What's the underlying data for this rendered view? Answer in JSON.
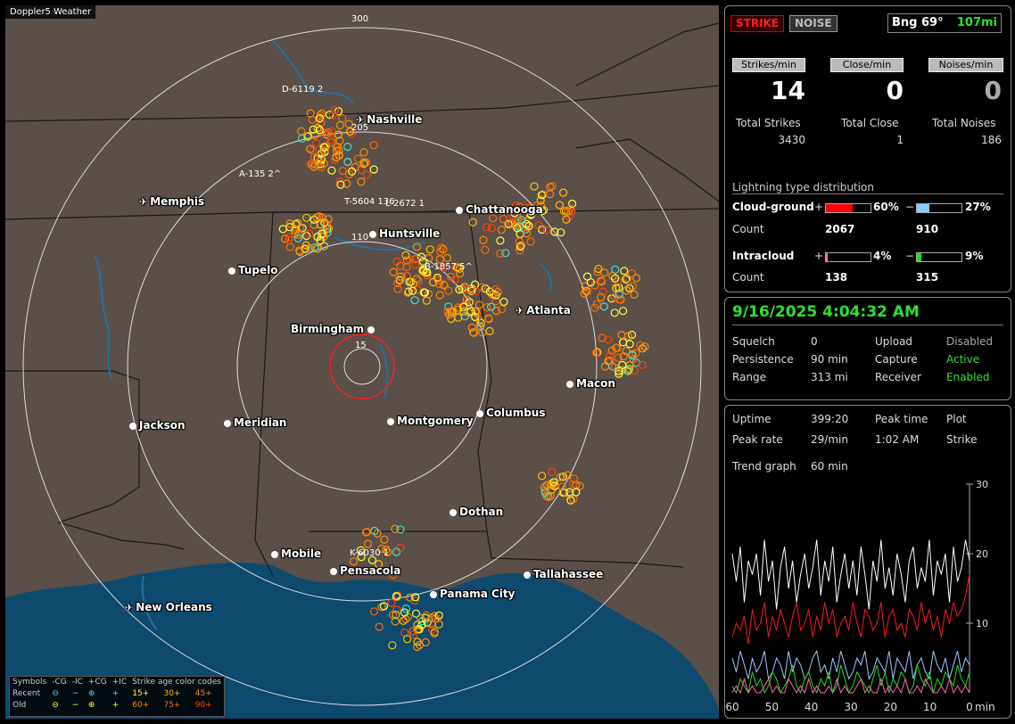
{
  "app_title": "Doppler5 Weather",
  "map": {
    "range_rings": [
      "300",
      "205",
      "110",
      "15"
    ],
    "cities": [
      {
        "name": "Nashville",
        "kind": "airport"
      },
      {
        "name": "Memphis",
        "kind": "airport"
      },
      {
        "name": "Chattanooga",
        "kind": "city"
      },
      {
        "name": "Huntsville",
        "kind": "city"
      },
      {
        "name": "Tupelo",
        "kind": "city"
      },
      {
        "name": "Atlanta",
        "kind": "airport"
      },
      {
        "name": "Birmingham",
        "kind": "city"
      },
      {
        "name": "Macon",
        "kind": "city"
      },
      {
        "name": "Jackson",
        "kind": "city"
      },
      {
        "name": "Meridian",
        "kind": "city"
      },
      {
        "name": "Montgomery",
        "kind": "city"
      },
      {
        "name": "Columbus",
        "kind": "city"
      },
      {
        "name": "Dothan",
        "kind": "city"
      },
      {
        "name": "Mobile",
        "kind": "city"
      },
      {
        "name": "Pensacola",
        "kind": "city"
      },
      {
        "name": "Panama City",
        "kind": "city"
      },
      {
        "name": "Tallahassee",
        "kind": "city"
      },
      {
        "name": "New Orleans",
        "kind": "airport"
      }
    ],
    "storm_labels": [
      "D-6119 2",
      "A-135 2^",
      "T-5604 136",
      "L-2672 1",
      "B-1857 5^",
      "K-6030 1"
    ]
  },
  "legend": {
    "row_header": "Symbols",
    "columns": [
      "-CG",
      "-IC",
      "+CG",
      "+IC"
    ],
    "age_title": "Strike age color codes",
    "recent_label": "Recent",
    "old_label": "Old",
    "recent_symbols": [
      "⊖",
      "−",
      "⊕",
      "+"
    ],
    "old_symbols": [
      "⊖",
      "−",
      "⊕",
      "+"
    ],
    "recent_ages": [
      "15+",
      "30+",
      "45+"
    ],
    "old_ages": [
      "60+",
      "75+",
      "90+"
    ],
    "age_colors": [
      "#ffff40",
      "#ffc000",
      "#ff8c00",
      "#ff8c00",
      "#ff6a00",
      "#ff4500"
    ]
  },
  "status": {
    "strike_tab": "STRIKE",
    "noise_tab": "NOISE",
    "bearing": "Bng 69°",
    "distance": "107mi",
    "strikes_rate_label": "Strikes/min",
    "close_rate_label": "Close/min",
    "noise_rate_label": "Noises/min",
    "strikes_rate": "14",
    "close_rate": "0",
    "noise_rate": "0",
    "total_strikes_label": "Total Strikes",
    "total_close_label": "Total Close",
    "total_noises_label": "Total Noises",
    "total_strikes": "3430",
    "total_close": "1",
    "total_noises": "186"
  },
  "distribution": {
    "title": "Lightning type distribution",
    "cg_label": "Cloud-ground",
    "ic_label": "Intracloud",
    "count_label": "Count",
    "plus": "+",
    "minus": "−",
    "cg_pos_pct": "60%",
    "cg_neg_pct": "27%",
    "ic_pos_pct": "4%",
    "ic_neg_pct": "9%",
    "cg_pos_fraction": 0.6,
    "cg_neg_fraction": 0.27,
    "ic_pos_fraction": 0.04,
    "ic_neg_fraction": 0.09,
    "cg_pos_count": "2067",
    "cg_neg_count": "910",
    "ic_pos_count": "138",
    "ic_neg_count": "315",
    "colors": {
      "cg_pos": "#ff0000",
      "cg_neg": "#88ccff",
      "ic_pos": "#ff66aa",
      "ic_neg": "#22dd22"
    }
  },
  "settings": {
    "datetime": "9/16/2025 4:04:32 AM",
    "squelch_label": "Squelch",
    "squelch": "0",
    "persistence_label": "Persistence",
    "persistence": "90 min",
    "range_label": "Range",
    "range": "313 mi",
    "upload_label": "Upload",
    "upload": "Disabled",
    "capture_label": "Capture",
    "capture": "Active",
    "receiver_label": "Receiver",
    "receiver": "Enabled"
  },
  "stats": {
    "uptime_label": "Uptime",
    "uptime": "399:20",
    "peak_time_label": "Peak time",
    "peak_time": "1:02 AM",
    "plot_label": "Plot",
    "plot": "Strike",
    "peak_rate_label": "Peak rate",
    "peak_rate": "29/min",
    "trend_label": "Trend graph",
    "trend": "60 min"
  },
  "chart_data": {
    "type": "line",
    "x_ticks": [
      "60",
      "50",
      "40",
      "30",
      "20",
      "10",
      "0"
    ],
    "x_unit": "min",
    "y_ticks": [
      "30",
      "20",
      "10"
    ],
    "xlim": [
      60,
      0
    ],
    "ylim": [
      0,
      30
    ],
    "series": [
      {
        "color": "#ffffff",
        "values": [
          20,
          16,
          21,
          13,
          19,
          17,
          20,
          14,
          22,
          16,
          19,
          12,
          18,
          21,
          15,
          19,
          13,
          17,
          20,
          15,
          18,
          22,
          14,
          19,
          16,
          21,
          13,
          17,
          20,
          15,
          19,
          14,
          21,
          17,
          12,
          19,
          16,
          22,
          15,
          18,
          14,
          20,
          17,
          13,
          19,
          21,
          15,
          18,
          16,
          22,
          14,
          19,
          17,
          20,
          13,
          21,
          16,
          18,
          22,
          19
        ]
      },
      {
        "color": "#ff1a1a",
        "values": [
          8,
          10,
          9,
          11,
          7,
          12,
          9,
          10,
          13,
          8,
          11,
          9,
          12,
          10,
          8,
          11,
          13,
          9,
          10,
          12,
          8,
          11,
          9,
          13,
          10,
          12,
          8,
          10,
          11,
          9,
          13,
          10,
          8,
          12,
          11,
          9,
          10,
          13,
          8,
          11,
          12,
          9,
          10,
          8,
          12,
          11,
          9,
          13,
          10,
          12,
          9,
          11,
          8,
          12,
          10,
          13,
          11,
          12,
          14,
          17
        ]
      },
      {
        "color": "#99ccff",
        "values": [
          5,
          3,
          6,
          4,
          2,
          5,
          3,
          4,
          6,
          2,
          3,
          5,
          4,
          2,
          6,
          3,
          5,
          4,
          2,
          3,
          5,
          6,
          3,
          4,
          2,
          5,
          3,
          6,
          4,
          2,
          3,
          5,
          4,
          6,
          2,
          3,
          5,
          4,
          3,
          6,
          2,
          5,
          4,
          3,
          6,
          2,
          4,
          5,
          3,
          2,
          6,
          4,
          3,
          5,
          2,
          4,
          6,
          3,
          5,
          4
        ]
      },
      {
        "color": "#22dd22",
        "values": [
          1,
          0,
          2,
          1,
          0,
          3,
          1,
          2,
          0,
          1,
          3,
          2,
          0,
          1,
          2,
          4,
          1,
          0,
          2,
          3,
          1,
          0,
          2,
          1,
          3,
          0,
          1,
          4,
          2,
          0,
          1,
          3,
          2,
          1,
          0,
          2,
          4,
          1,
          3,
          0,
          2,
          1,
          3,
          2,
          0,
          1,
          4,
          2,
          1,
          3,
          0,
          2,
          1,
          3,
          2,
          1,
          4,
          2,
          1,
          3
        ]
      },
      {
        "color": "#ff66aa",
        "values": [
          0,
          1,
          0,
          2,
          0,
          1,
          0,
          0,
          1,
          2,
          0,
          1,
          0,
          0,
          2,
          1,
          0,
          1,
          0,
          2,
          0,
          1,
          0,
          0,
          1,
          0,
          2,
          0,
          1,
          0,
          0,
          1,
          2,
          0,
          1,
          0,
          0,
          2,
          0,
          1,
          0,
          1,
          0,
          2,
          0,
          0,
          1,
          0,
          2,
          1,
          0,
          0,
          1,
          0,
          2,
          0,
          1,
          0,
          1,
          0
        ]
      }
    ]
  }
}
